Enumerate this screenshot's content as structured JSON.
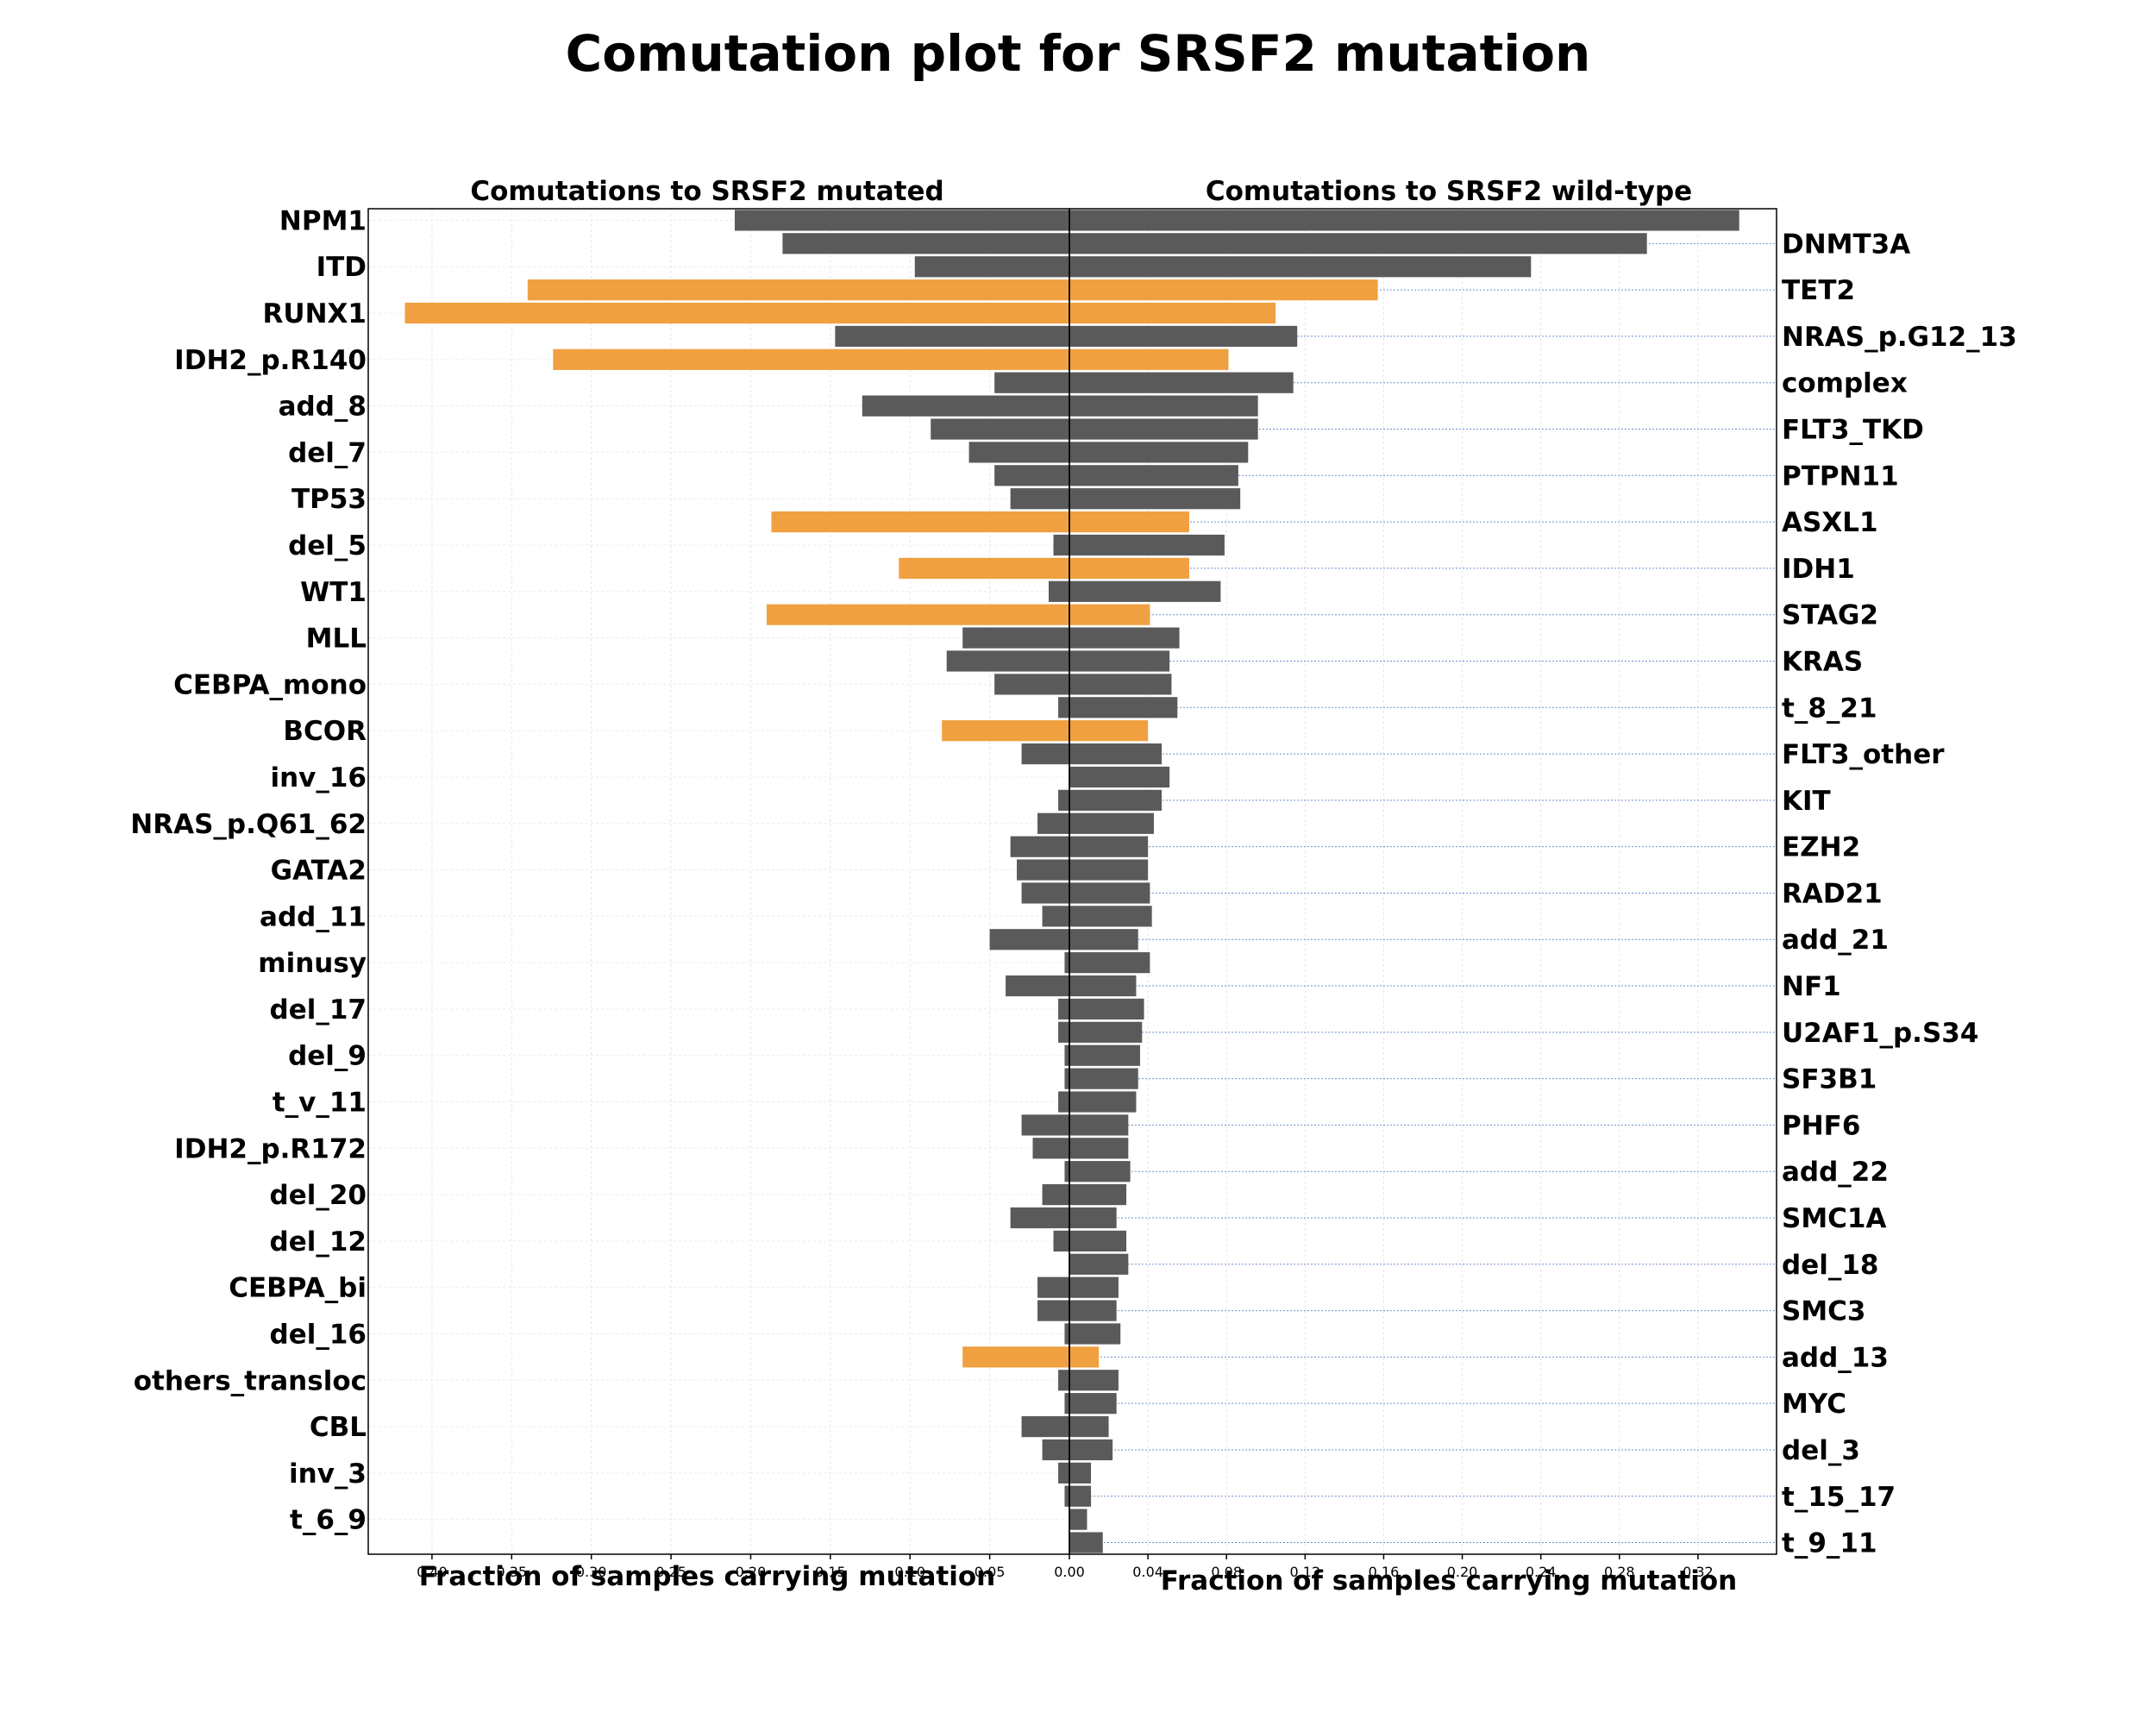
{
  "chart_data": {
    "type": "bar",
    "orientation": "horizontal",
    "title": "Comutation plot for SRSF2 mutation",
    "highlight_color": "#f0a040",
    "base_color": "#5a5a5a",
    "panels": [
      {
        "title": "Comutations to SRSF2 mutated",
        "xlabel": "Fraction of samples carrying mutation",
        "xlim": [
          0.44,
          0
        ],
        "direction": "left"
      },
      {
        "title": "Comutations to SRSF2 wild-type",
        "xlabel": "Fraction of samples carrying mutation",
        "xlim": [
          0,
          0.36
        ],
        "direction": "right"
      }
    ],
    "left_ticks": [
      "0.40",
      "0.35",
      "0.30",
      "0.25",
      "0.20",
      "0.15",
      "0.10",
      "0.05",
      "0.00"
    ],
    "right_ticks": [
      "0.04",
      "0.08",
      "0.12",
      "0.16",
      "0.20",
      "0.24",
      "0.28",
      "0.32"
    ],
    "categories": [
      "NPM1",
      "DNMT3A",
      "ITD",
      "TET2",
      "RUNX1",
      "NRAS_p.G12_13",
      "IDH2_p.R140",
      "complex",
      "add_8",
      "FLT3_TKD",
      "del_7",
      "PTPN11",
      "TP53",
      "ASXL1",
      "del_5",
      "IDH1",
      "WT1",
      "STAG2",
      "MLL",
      "KRAS",
      "CEBPA_mono",
      "t_8_21",
      "BCOR",
      "FLT3_other",
      "inv_16",
      "KIT",
      "NRAS_p.Q61_62",
      "EZH2",
      "GATA2",
      "RAD21",
      "add_11",
      "add_21",
      "minusy",
      "NF1",
      "del_17",
      "U2AF1_p.S34",
      "del_9",
      "SF3B1",
      "t_v_11",
      "PHF6",
      "IDH2_p.R172",
      "add_22",
      "del_20",
      "SMC1A",
      "del_12",
      "del_18",
      "CEBPA_bi",
      "SMC3",
      "del_16",
      "add_13",
      "others_transloc",
      "MYC",
      "CBL",
      "del_3",
      "inv_3",
      "t_15_17",
      "t_6_9",
      "t_9_11"
    ],
    "series": [
      {
        "name": "",
        "values": [
          0.21,
          0.18,
          0.097,
          0.34,
          0.417,
          0.147,
          0.324,
          0.047,
          0.13,
          0.087,
          0.063,
          0.047,
          0.037,
          0.187,
          0.01,
          0.107,
          0.013,
          0.19,
          0.067,
          0.077,
          0.047,
          0.007,
          0.08,
          0.03,
          0.0,
          0.007,
          0.02,
          0.037,
          0.033,
          0.03,
          0.017,
          0.05,
          0.003,
          0.04,
          0.007,
          0.007,
          0.003,
          0.003,
          0.007,
          0.03,
          0.023,
          0.003,
          0.017,
          0.037,
          0.01,
          0.0,
          0.02,
          0.02,
          0.003,
          0.067,
          0.007,
          0.003,
          0.03,
          0.017,
          0.007,
          0.003,
          0.0,
          0.0
        ]
      },
      {
        "name": "",
        "values": [
          0.341,
          0.294,
          0.235,
          0.157,
          0.105,
          0.116,
          0.081,
          0.114,
          0.096,
          0.096,
          0.091,
          0.086,
          0.087,
          0.061,
          0.079,
          0.061,
          0.077,
          0.041,
          0.056,
          0.051,
          0.052,
          0.055,
          0.04,
          0.047,
          0.051,
          0.047,
          0.043,
          0.04,
          0.04,
          0.041,
          0.042,
          0.035,
          0.041,
          0.034,
          0.038,
          0.037,
          0.036,
          0.035,
          0.034,
          0.03,
          0.03,
          0.031,
          0.029,
          0.024,
          0.029,
          0.03,
          0.025,
          0.024,
          0.026,
          0.015,
          0.025,
          0.024,
          0.02,
          0.022,
          0.011,
          0.011,
          0.009,
          0.017
        ]
      }
    ],
    "highlighted": [
      "TET2",
      "RUNX1",
      "IDH2_p.R140",
      "ASXL1",
      "IDH1",
      "STAG2",
      "BCOR",
      "add_13"
    ],
    "grid": true
  }
}
